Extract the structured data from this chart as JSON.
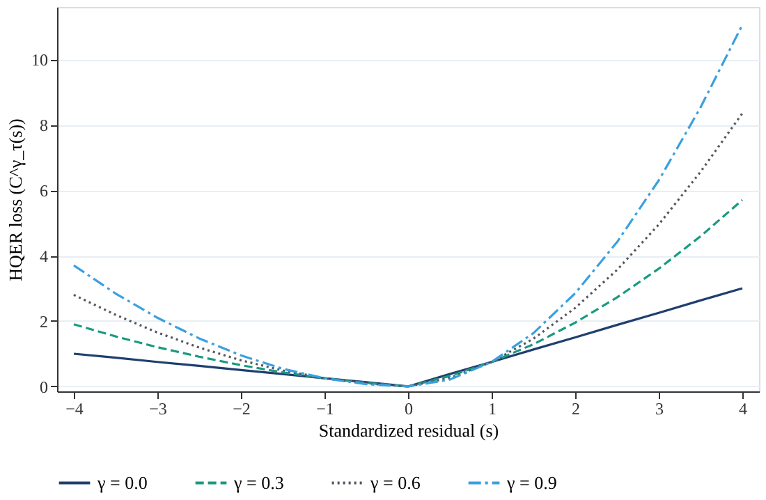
{
  "chart_data": {
    "type": "line",
    "xlabel": "Standardized residual (s)",
    "ylabel": "HQER loss (C^γ_τ(s))",
    "x": [
      -4,
      -3.5,
      -3,
      -2.5,
      -2,
      -1.5,
      -1,
      -0.5,
      0,
      0.5,
      1,
      1.5,
      2,
      2.5,
      3,
      3.5,
      4
    ],
    "series": [
      {
        "name": "γ = 0.0",
        "color": "#1f3f6e",
        "line_style": "solid",
        "values": [
          1.0,
          0.88,
          0.75,
          0.63,
          0.5,
          0.38,
          0.25,
          0.13,
          0,
          0.38,
          0.75,
          1.13,
          1.5,
          1.88,
          2.25,
          2.63,
          3.0
        ]
      },
      {
        "name": "γ = 0.3",
        "color": "#1a9a80",
        "line_style": "dashed",
        "values": [
          1.9,
          1.53,
          1.2,
          0.91,
          0.65,
          0.43,
          0.25,
          0.11,
          0,
          0.32,
          0.75,
          1.29,
          1.95,
          2.72,
          3.6,
          4.59,
          5.7
        ]
      },
      {
        "name": "γ = 0.6",
        "color": "#555560",
        "line_style": "dotted",
        "values": [
          2.8,
          2.19,
          1.65,
          1.19,
          0.8,
          0.49,
          0.25,
          0.09,
          0,
          0.26,
          0.75,
          1.46,
          2.4,
          3.56,
          4.95,
          6.56,
          8.35
        ]
      },
      {
        "name": "γ = 0.9",
        "color": "#3aa0e0",
        "line_style": "dashdot",
        "values": [
          3.7,
          2.84,
          2.1,
          1.47,
          0.95,
          0.54,
          0.25,
          0.07,
          0,
          0.21,
          0.75,
          1.63,
          2.85,
          4.41,
          6.3,
          8.53,
          11.05
        ]
      }
    ],
    "xlim": [
      -4.2,
      4.2
    ],
    "xticks": [
      -4,
      -3,
      -2,
      -1,
      0,
      1,
      2,
      3,
      4
    ],
    "ylim": [
      -0.15,
      11.6
    ],
    "yticks": [
      0,
      2,
      4,
      6,
      8,
      10
    ],
    "grid": "y",
    "legend": "bottom"
  }
}
